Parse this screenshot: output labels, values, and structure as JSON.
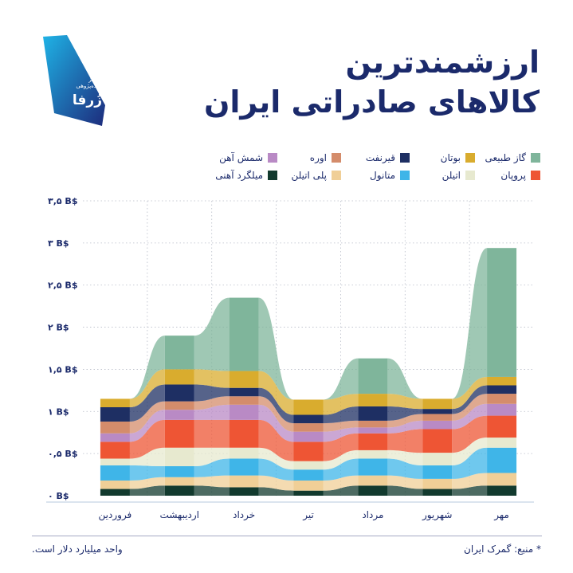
{
  "logo": {
    "line1": "مرکز",
    "line2": "داده‌پژوهی",
    "name": "زُرفا"
  },
  "title": {
    "line1": "ارزشمندترین",
    "line2": "کالاهای صادراتی ایران"
  },
  "legend": [
    {
      "name": "گاز طبیعی",
      "color": "#7fb59b"
    },
    {
      "name": "بوتان",
      "color": "#d9ac2e"
    },
    {
      "name": "قیرنفت",
      "color": "#1e2f63"
    },
    {
      "name": "اوره",
      "color": "#d48c6b"
    },
    {
      "name": "شمش آهن",
      "color": "#b98ac5"
    },
    {
      "name": "پروپان",
      "color": "#ee5534"
    },
    {
      "name": "اتیلن",
      "color": "#e7e9cf"
    },
    {
      "name": "متانول",
      "color": "#3fb5e8"
    },
    {
      "name": "پلی اتیلن",
      "color": "#f0cf97"
    },
    {
      "name": "میلگرد آهنی",
      "color": "#123a2e"
    }
  ],
  "chart_data": {
    "type": "area",
    "ylim": [
      0,
      3.5
    ],
    "yticks": [
      "۰ B$",
      "۰,۵ B$",
      "۱ B$",
      "۱,۵ B$",
      "۲ B$",
      "۲,۵ B$",
      "۳ B$",
      "۳,۵ B$"
    ],
    "ytick_values": [
      0,
      0.5,
      1,
      1.5,
      2,
      2.5,
      3,
      3.5
    ],
    "categories": [
      "فروردین",
      "اردیبهشت",
      "خرداد",
      "تیر",
      "مرداد",
      "شهریور",
      "مهر"
    ],
    "series": [
      {
        "name": "گاز طبیعی",
        "color": "#7fb59b",
        "values": [
          0.0,
          0.4,
          0.87,
          0.0,
          0.42,
          0.0,
          1.53
        ]
      },
      {
        "name": "بوتان",
        "color": "#d9ac2e",
        "values": [
          0.1,
          0.18,
          0.2,
          0.18,
          0.15,
          0.12,
          0.1
        ]
      },
      {
        "name": "قیرنفت",
        "color": "#1e2f63",
        "values": [
          0.17,
          0.2,
          0.1,
          0.1,
          0.17,
          0.06,
          0.1
        ]
      },
      {
        "name": "اوره",
        "color": "#d48c6b",
        "values": [
          0.14,
          0.1,
          0.1,
          0.1,
          0.08,
          0.08,
          0.12
        ]
      },
      {
        "name": "شمش آهن",
        "color": "#b98ac5",
        "values": [
          0.1,
          0.12,
          0.18,
          0.12,
          0.07,
          0.1,
          0.14
        ]
      },
      {
        "name": "پروپان",
        "color": "#ee5534",
        "values": [
          0.2,
          0.33,
          0.33,
          0.23,
          0.2,
          0.28,
          0.26
        ]
      },
      {
        "name": "اتیلن",
        "color": "#e7e9cf",
        "values": [
          0.08,
          0.22,
          0.13,
          0.1,
          0.1,
          0.15,
          0.12
        ]
      },
      {
        "name": "متانول",
        "color": "#3fb5e8",
        "values": [
          0.18,
          0.13,
          0.2,
          0.13,
          0.2,
          0.16,
          0.3
        ]
      },
      {
        "name": "پلی اتیلن",
        "color": "#f0cf97",
        "values": [
          0.1,
          0.1,
          0.14,
          0.12,
          0.12,
          0.12,
          0.15
        ]
      },
      {
        "name": "میلگرد آهنی",
        "color": "#123a2e",
        "values": [
          0.08,
          0.12,
          0.1,
          0.06,
          0.12,
          0.08,
          0.12
        ]
      }
    ]
  },
  "footer": {
    "source": "* منبع: گمرک ایران",
    "unit": "واحد میلیارد دلار است."
  }
}
